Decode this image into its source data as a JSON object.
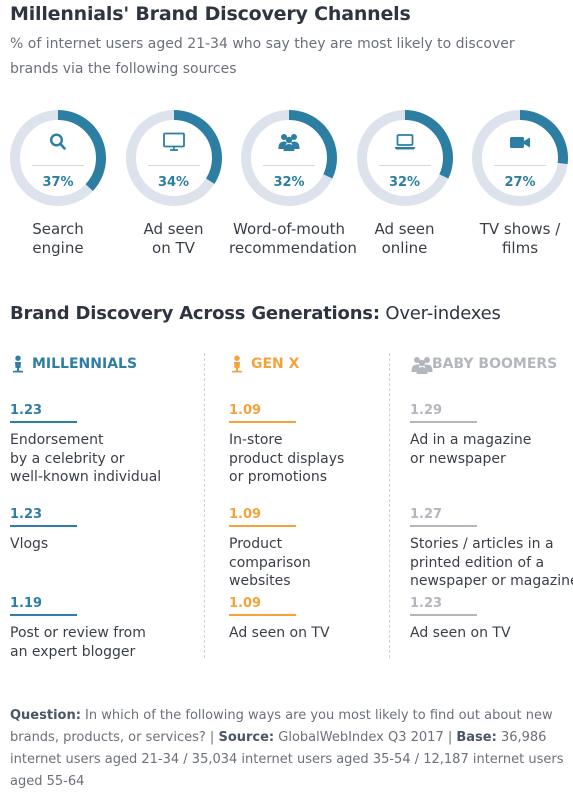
{
  "title": "Millennials' Brand Discovery Channels",
  "subtitle": "% of internet users aged 21-34 who say they are most likely to discover brands via the following sources",
  "colors": {
    "accent": "#2c7ea3",
    "ring_bg": "#dde3ec",
    "millennials": "#2f7ea6",
    "genx": "#f5a23a",
    "boomers": "#b3b7bd"
  },
  "chart_data": {
    "type": "pie",
    "title": "Millennials' Brand Discovery Channels",
    "categories": [
      "Search engine",
      "Ad seen on TV",
      "Word-of-mouth recommendation",
      "Ad seen online",
      "TV shows / films"
    ],
    "values": [
      37,
      34,
      32,
      32,
      27
    ],
    "unit": "%",
    "items": [
      {
        "label_line1": "Search",
        "label_line2": "engine",
        "value": 37,
        "value_label": "37%",
        "icon": "search-icon"
      },
      {
        "label_line1": "Ad seen",
        "label_line2": "on TV",
        "value": 34,
        "value_label": "34%",
        "icon": "tv-icon"
      },
      {
        "label_line1": "Word-of-mouth",
        "label_line2": "recommendation",
        "value": 32,
        "value_label": "32%",
        "icon": "people-icon"
      },
      {
        "label_line1": "Ad seen",
        "label_line2": "online",
        "value": 32,
        "value_label": "32%",
        "icon": "laptop-icon"
      },
      {
        "label_line1": "TV shows /",
        "label_line2": "films",
        "value": 27,
        "value_label": "27%",
        "icon": "video-camera-icon"
      }
    ]
  },
  "generations": {
    "title_bold": "Brand Discovery Across Generations:",
    "title_rest": " Over-indexes",
    "columns": [
      {
        "name": "MILLENNIALS",
        "icon": "person-icon",
        "color": "#2f7ea6",
        "items": [
          {
            "value": "1.23",
            "lines": [
              "Endorsement",
              "by a celebrity or",
              "well-known individual"
            ]
          },
          {
            "value": "1.23",
            "lines": [
              "Vlogs"
            ]
          },
          {
            "value": "1.19",
            "lines": [
              "Post or review from",
              "an expert blogger"
            ]
          }
        ]
      },
      {
        "name": "GEN X",
        "icon": "person-icon",
        "color": "#f5a23a",
        "items": [
          {
            "value": "1.09",
            "lines": [
              "In-store",
              "product displays",
              "or promotions"
            ]
          },
          {
            "value": "1.09",
            "lines": [
              "Product",
              "comparison",
              "websites"
            ]
          },
          {
            "value": "1.09",
            "lines": [
              "Ad seen on TV"
            ]
          }
        ]
      },
      {
        "name": "BABY BOOMERS",
        "icon": "people-icon",
        "color": "#b3b7bd",
        "items": [
          {
            "value": "1.29",
            "lines": [
              "Ad in a magazine",
              "or newspaper"
            ]
          },
          {
            "value": "1.27",
            "lines": [
              "Stories / articles in a",
              "printed edition of a",
              "newspaper or magazine"
            ]
          },
          {
            "value": "1.23",
            "lines": [
              "Ad seen on TV"
            ]
          }
        ]
      }
    ]
  },
  "footer": {
    "question_label": "Question:",
    "question": " In which of the following ways are you most likely to find out about new brands, products, or services?  | ",
    "source_label": "Source:",
    "source": " GlobalWebIndex Q3 2017  | ",
    "base_label": "Base:",
    "base": " 36,986 internet users aged 21-34 / 35,034 internet users aged 35-54 / 12,187 internet users aged 55-64"
  }
}
